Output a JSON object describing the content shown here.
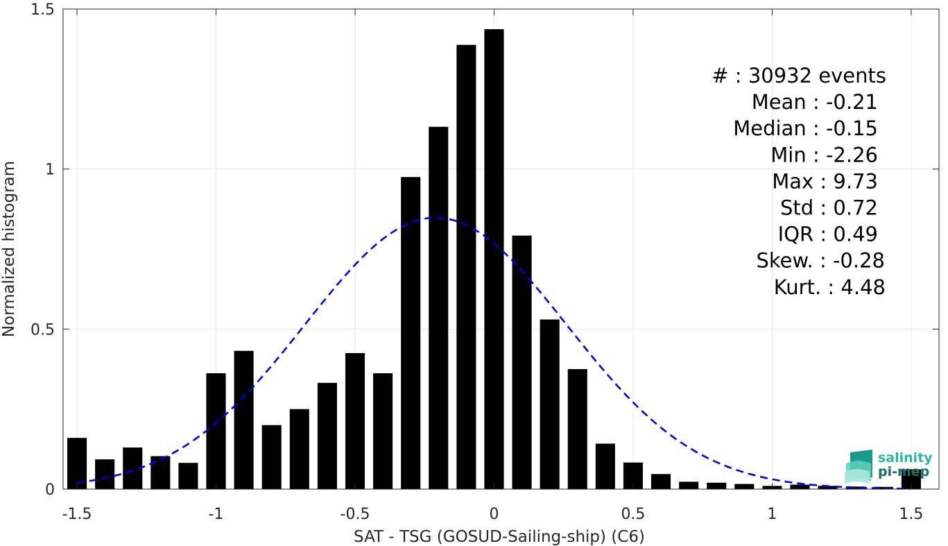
{
  "chart_data": {
    "type": "bar",
    "title": "",
    "xlabel": "SAT - TSG (GOSUD-Sailing-ship) (C6)",
    "ylabel": "Normalized histogram",
    "xlim": [
      -1.55,
      1.6
    ],
    "ylim": [
      0,
      1.5
    ],
    "grid": true,
    "x_ticks": [
      -1.5,
      -1,
      -0.5,
      0,
      0.5,
      1,
      1.5
    ],
    "x_tick_labels": [
      "-1.5",
      "-1",
      "-0.5",
      "0",
      "0.5",
      "1",
      "1.5"
    ],
    "y_ticks": [
      0,
      0.5,
      1,
      1.5
    ],
    "y_tick_labels": [
      "0",
      "0.5",
      "1",
      "1.5"
    ],
    "bar_width": 0.07,
    "x": [
      -1.5,
      -1.4,
      -1.3,
      -1.2,
      -1.1,
      -1.0,
      -0.9,
      -0.8,
      -0.7,
      -0.6,
      -0.5,
      -0.4,
      -0.3,
      -0.2,
      -0.1,
      0.0,
      0.1,
      0.2,
      0.3,
      0.4,
      0.5,
      0.6,
      0.7,
      0.8,
      0.9,
      1.0,
      1.1,
      1.2,
      1.3,
      1.4,
      1.5
    ],
    "values": [
      0.16,
      0.093,
      0.13,
      0.103,
      0.082,
      0.362,
      0.432,
      0.2,
      0.25,
      0.332,
      0.425,
      0.362,
      0.975,
      1.132,
      1.388,
      1.437,
      0.792,
      0.53,
      0.375,
      0.142,
      0.083,
      0.047,
      0.023,
      0.02,
      0.016,
      0.01,
      0.014,
      0.01,
      0.008,
      0.007,
      0.062
    ],
    "fit": {
      "name": "",
      "style": "dashed",
      "color": "#0000e0",
      "x_range": [
        -1.5,
        1.5
      ],
      "mean": -0.21,
      "std": 0.47,
      "peak": 0.848
    },
    "bar_color": "#000000",
    "annotations": [
      {
        "label": "#",
        "sep": " : ",
        "value": "30932 events"
      },
      {
        "label": "Mean",
        "sep": " : ",
        "value": "-0.21"
      },
      {
        "label": "Median",
        "sep": " : ",
        "value": "-0.15"
      },
      {
        "label": "Min",
        "sep": " : ",
        "value": "-2.26"
      },
      {
        "label": "Max",
        "sep": " : ",
        "value": "9.73"
      },
      {
        "label": "Std",
        "sep": " : ",
        "value": "0.72"
      },
      {
        "label": "IQR",
        "sep": " : ",
        "value": "0.49"
      },
      {
        "label": "Skew.",
        "sep": " : ",
        "value": "-0.28"
      },
      {
        "label": "Kurt.",
        "sep": " : ",
        "value": "4.48"
      }
    ]
  },
  "logo": {
    "line1": "salinity",
    "line2": "pi-mep",
    "color1": "#2bb5a0",
    "color2": "#1a6f63"
  }
}
